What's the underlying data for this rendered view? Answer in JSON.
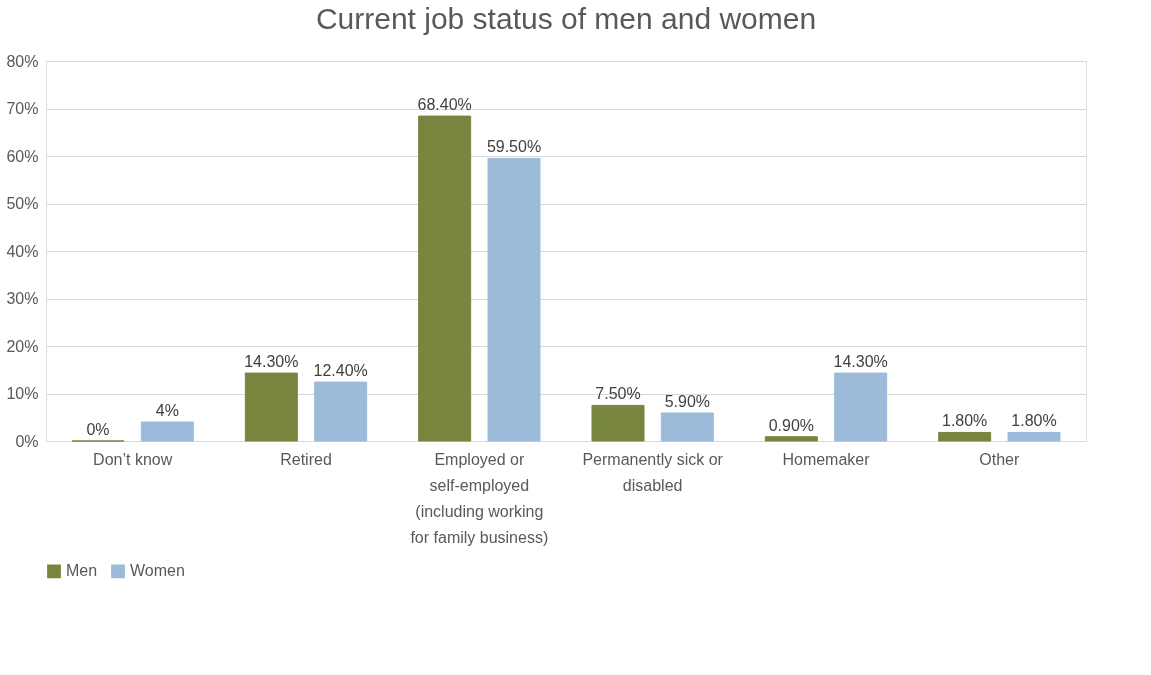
{
  "chart_data": {
    "type": "bar",
    "title": "Current job status of men and women",
    "categories": [
      "Don’t know",
      "Retired",
      "Employed or self-employed (including working for family business)",
      "Permanently sick or disabled",
      "Homemaker",
      "Other"
    ],
    "series": [
      {
        "name": "Men",
        "color": "#77853f",
        "values": [
          0,
          14.3,
          68.4,
          7.5,
          0.9,
          1.8
        ],
        "value_labels": [
          "0%",
          "14.30%",
          "68.40%",
          "7.50%",
          "0.90%",
          "1.80%"
        ]
      },
      {
        "name": "Women",
        "color": "#9bbbd9",
        "values": [
          4,
          12.4,
          59.5,
          5.9,
          14.3,
          1.8
        ],
        "value_labels": [
          "4%",
          "12.40%",
          "59.50%",
          "5.90%",
          "14.30%",
          "1.80%"
        ]
      }
    ],
    "ylim": [
      0,
      80
    ],
    "yticks": [
      {
        "value": 0,
        "label": "0%"
      },
      {
        "value": 10,
        "label": "10%"
      },
      {
        "value": 20,
        "label": "20%"
      },
      {
        "value": 30,
        "label": "30%"
      },
      {
        "value": 40,
        "label": "40%"
      },
      {
        "value": 50,
        "label": "50%"
      },
      {
        "value": 60,
        "label": "60%"
      },
      {
        "value": 70,
        "label": "70%"
      },
      {
        "value": 80,
        "label": "80%"
      }
    ],
    "grid": "y",
    "legend": "bottom"
  }
}
